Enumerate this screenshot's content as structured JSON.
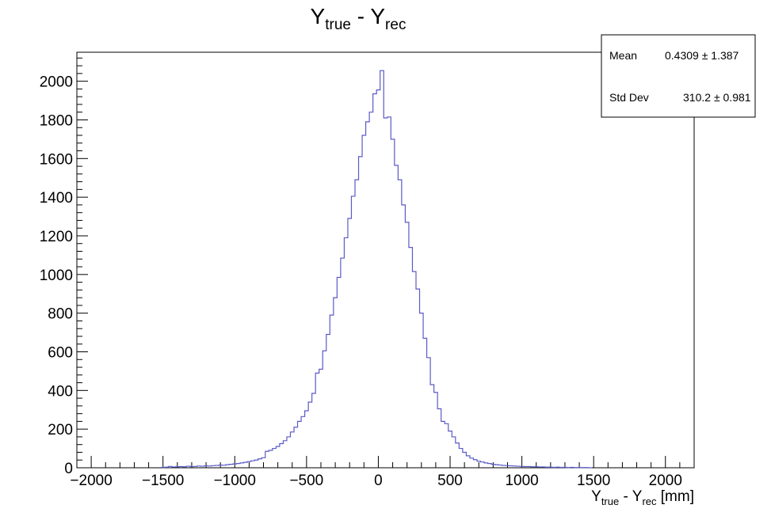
{
  "title": {
    "main": "Y",
    "sub1": "true",
    "mid": " - Y",
    "sub2": "rec"
  },
  "stats": {
    "mean_label": "Mean",
    "mean_value": "0.4309",
    "mean_error": "1.387",
    "stddev_label": "Std Dev",
    "stddev_value": "310.2",
    "stddev_error": "0.981",
    "pm": "±"
  },
  "axes": {
    "x_title": {
      "main": "Y",
      "sub1": "true",
      "mid": " - Y",
      "sub2": "rec",
      "unit": " [mm]"
    }
  },
  "colors": {
    "line": "#5a5ac8",
    "frame": "#000000"
  },
  "chart_data": {
    "type": "histogram",
    "xlim": [
      -2100,
      2200
    ],
    "ylim": [
      0,
      2150
    ],
    "bin_width": 25,
    "xticks": [
      -2000,
      -1500,
      -1000,
      -500,
      0,
      500,
      1000,
      1500,
      2000
    ],
    "xtick_labels": [
      "−2000",
      "−1500",
      "−1000",
      "−500",
      "0",
      "500",
      "1000",
      "1500",
      "2000"
    ],
    "yticks": [
      0,
      200,
      400,
      600,
      800,
      1000,
      1200,
      1400,
      1600,
      1800,
      2000
    ],
    "ytick_labels": [
      "0",
      "200",
      "400",
      "600",
      "800",
      "1000",
      "1200",
      "1400",
      "1600",
      "1800",
      "2000"
    ],
    "grid": false,
    "bins": [
      {
        "x": -1500,
        "y": 2
      },
      {
        "x": -1475,
        "y": 3
      },
      {
        "x": -1450,
        "y": 7
      },
      {
        "x": -1425,
        "y": 4
      },
      {
        "x": -1400,
        "y": 5
      },
      {
        "x": -1375,
        "y": 6
      },
      {
        "x": -1350,
        "y": 5
      },
      {
        "x": -1325,
        "y": 8
      },
      {
        "x": -1300,
        "y": 6
      },
      {
        "x": -1275,
        "y": 7
      },
      {
        "x": -1250,
        "y": 9
      },
      {
        "x": -1225,
        "y": 8
      },
      {
        "x": -1200,
        "y": 10
      },
      {
        "x": -1175,
        "y": 9
      },
      {
        "x": -1150,
        "y": 11
      },
      {
        "x": -1125,
        "y": 12
      },
      {
        "x": -1100,
        "y": 14
      },
      {
        "x": -1075,
        "y": 13
      },
      {
        "x": -1050,
        "y": 16
      },
      {
        "x": -1025,
        "y": 18
      },
      {
        "x": -1000,
        "y": 20
      },
      {
        "x": -975,
        "y": 22
      },
      {
        "x": -950,
        "y": 25
      },
      {
        "x": -925,
        "y": 28
      },
      {
        "x": -900,
        "y": 32
      },
      {
        "x": -875,
        "y": 36
      },
      {
        "x": -850,
        "y": 40
      },
      {
        "x": -825,
        "y": 46
      },
      {
        "x": -800,
        "y": 52
      },
      {
        "x": -775,
        "y": 85
      },
      {
        "x": -750,
        "y": 90
      },
      {
        "x": -725,
        "y": 100
      },
      {
        "x": -700,
        "y": 110
      },
      {
        "x": -675,
        "y": 125
      },
      {
        "x": -650,
        "y": 140
      },
      {
        "x": -625,
        "y": 160
      },
      {
        "x": -600,
        "y": 185
      },
      {
        "x": -575,
        "y": 210
      },
      {
        "x": -550,
        "y": 240
      },
      {
        "x": -525,
        "y": 265
      },
      {
        "x": -500,
        "y": 295
      },
      {
        "x": -475,
        "y": 340
      },
      {
        "x": -450,
        "y": 385
      },
      {
        "x": -425,
        "y": 490
      },
      {
        "x": -400,
        "y": 510
      },
      {
        "x": -375,
        "y": 605
      },
      {
        "x": -350,
        "y": 690
      },
      {
        "x": -325,
        "y": 790
      },
      {
        "x": -300,
        "y": 880
      },
      {
        "x": -275,
        "y": 985
      },
      {
        "x": -250,
        "y": 1085
      },
      {
        "x": -225,
        "y": 1190
      },
      {
        "x": -200,
        "y": 1290
      },
      {
        "x": -175,
        "y": 1405
      },
      {
        "x": -150,
        "y": 1490
      },
      {
        "x": -125,
        "y": 1610
      },
      {
        "x": -100,
        "y": 1720
      },
      {
        "x": -75,
        "y": 1790
      },
      {
        "x": -50,
        "y": 1840
      },
      {
        "x": -25,
        "y": 1935
      },
      {
        "x": 0,
        "y": 1955
      },
      {
        "x": 25,
        "y": 2055
      },
      {
        "x": 50,
        "y": 1810
      },
      {
        "x": 75,
        "y": 1815
      },
      {
        "x": 100,
        "y": 1700
      },
      {
        "x": 125,
        "y": 1565
      },
      {
        "x": 150,
        "y": 1490
      },
      {
        "x": 175,
        "y": 1360
      },
      {
        "x": 200,
        "y": 1270
      },
      {
        "x": 225,
        "y": 1140
      },
      {
        "x": 250,
        "y": 1015
      },
      {
        "x": 275,
        "y": 925
      },
      {
        "x": 300,
        "y": 800
      },
      {
        "x": 325,
        "y": 670
      },
      {
        "x": 350,
        "y": 570
      },
      {
        "x": 375,
        "y": 430
      },
      {
        "x": 400,
        "y": 390
      },
      {
        "x": 425,
        "y": 305
      },
      {
        "x": 450,
        "y": 240
      },
      {
        "x": 475,
        "y": 228
      },
      {
        "x": 500,
        "y": 190
      },
      {
        "x": 525,
        "y": 160
      },
      {
        "x": 550,
        "y": 128
      },
      {
        "x": 575,
        "y": 100
      },
      {
        "x": 600,
        "y": 80
      },
      {
        "x": 625,
        "y": 62
      },
      {
        "x": 650,
        "y": 50
      },
      {
        "x": 675,
        "y": 42
      },
      {
        "x": 700,
        "y": 34
      },
      {
        "x": 725,
        "y": 30
      },
      {
        "x": 750,
        "y": 25
      },
      {
        "x": 775,
        "y": 22
      },
      {
        "x": 800,
        "y": 18
      },
      {
        "x": 825,
        "y": 16
      },
      {
        "x": 850,
        "y": 14
      },
      {
        "x": 875,
        "y": 12
      },
      {
        "x": 900,
        "y": 11
      },
      {
        "x": 925,
        "y": 10
      },
      {
        "x": 950,
        "y": 9
      },
      {
        "x": 975,
        "y": 8
      },
      {
        "x": 1000,
        "y": 7
      },
      {
        "x": 1025,
        "y": 6
      },
      {
        "x": 1050,
        "y": 6
      },
      {
        "x": 1075,
        "y": 5
      },
      {
        "x": 1100,
        "y": 5
      },
      {
        "x": 1125,
        "y": 4
      },
      {
        "x": 1150,
        "y": 4
      },
      {
        "x": 1175,
        "y": 3
      },
      {
        "x": 1200,
        "y": 3
      },
      {
        "x": 1225,
        "y": 2
      },
      {
        "x": 1250,
        "y": 3
      },
      {
        "x": 1275,
        "y": 2
      },
      {
        "x": 1300,
        "y": 2
      },
      {
        "x": 1325,
        "y": 1
      },
      {
        "x": 1350,
        "y": 2
      },
      {
        "x": 1375,
        "y": 1
      },
      {
        "x": 1400,
        "y": 1
      },
      {
        "x": 1425,
        "y": 1
      },
      {
        "x": 1450,
        "y": 1
      },
      {
        "x": 1475,
        "y": 0
      }
    ]
  }
}
